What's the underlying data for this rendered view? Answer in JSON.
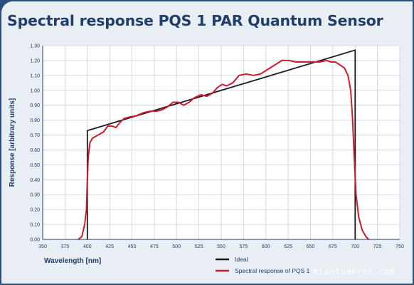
{
  "chart_data": {
    "type": "line",
    "title": "Spectral response PQS 1 PAR Quantum Sensor",
    "xlabel": "Wavelength [nm]",
    "ylabel": "Response [arbitrary units]",
    "xlim": [
      350,
      750
    ],
    "ylim": [
      0,
      1.3
    ],
    "xticks": [
      "350",
      "375",
      "400",
      "425",
      "450",
      "475",
      "500",
      "525",
      "550",
      "575",
      "600",
      "625",
      "650",
      "675",
      "700",
      "725",
      "750"
    ],
    "yticks": [
      "0.00",
      "0.10",
      "0.20",
      "0.30",
      "0.40",
      "0.50",
      "0.60",
      "0.70",
      "0.80",
      "0.90",
      "1.00",
      "1.10",
      "1.20",
      "1.30"
    ],
    "grid": true,
    "legend_position": "bottom",
    "series": [
      {
        "name": "Ideal",
        "color": "#1a1a1a",
        "points": [
          [
            400,
            0
          ],
          [
            400,
            0.73
          ],
          [
            700,
            1.27
          ],
          [
            700,
            0
          ]
        ]
      },
      {
        "name": "Spectral response of PQS 1",
        "color": "#cc1a2e",
        "points": [
          [
            390,
            0
          ],
          [
            394,
            0.02
          ],
          [
            397,
            0.1
          ],
          [
            399,
            0.2
          ],
          [
            400,
            0.4
          ],
          [
            401,
            0.55
          ],
          [
            403,
            0.65
          ],
          [
            406,
            0.68
          ],
          [
            412,
            0.7
          ],
          [
            418,
            0.72
          ],
          [
            423,
            0.76
          ],
          [
            428,
            0.76
          ],
          [
            432,
            0.75
          ],
          [
            436,
            0.78
          ],
          [
            441,
            0.81
          ],
          [
            447,
            0.82
          ],
          [
            455,
            0.83
          ],
          [
            463,
            0.85
          ],
          [
            470,
            0.86
          ],
          [
            477,
            0.86
          ],
          [
            484,
            0.87
          ],
          [
            490,
            0.89
          ],
          [
            496,
            0.92
          ],
          [
            502,
            0.92
          ],
          [
            508,
            0.9
          ],
          [
            514,
            0.92
          ],
          [
            520,
            0.95
          ],
          [
            527,
            0.97
          ],
          [
            534,
            0.96
          ],
          [
            540,
            0.98
          ],
          [
            546,
            1.02
          ],
          [
            551,
            1.04
          ],
          [
            556,
            1.03
          ],
          [
            563,
            1.05
          ],
          [
            570,
            1.1
          ],
          [
            578,
            1.11
          ],
          [
            586,
            1.1
          ],
          [
            594,
            1.11
          ],
          [
            602,
            1.14
          ],
          [
            610,
            1.17
          ],
          [
            618,
            1.2
          ],
          [
            626,
            1.2
          ],
          [
            634,
            1.19
          ],
          [
            642,
            1.19
          ],
          [
            652,
            1.19
          ],
          [
            660,
            1.19
          ],
          [
            668,
            1.2
          ],
          [
            673,
            1.19
          ],
          [
            678,
            1.19
          ],
          [
            683,
            1.17
          ],
          [
            688,
            1.15
          ],
          [
            692,
            1.1
          ],
          [
            695,
            1.0
          ],
          [
            697,
            0.82
          ],
          [
            699,
            0.55
          ],
          [
            701,
            0.3
          ],
          [
            704,
            0.15
          ],
          [
            708,
            0.06
          ],
          [
            712,
            0.02
          ],
          [
            715,
            0
          ]
        ]
      }
    ]
  },
  "watermark": "miantuanren.com"
}
